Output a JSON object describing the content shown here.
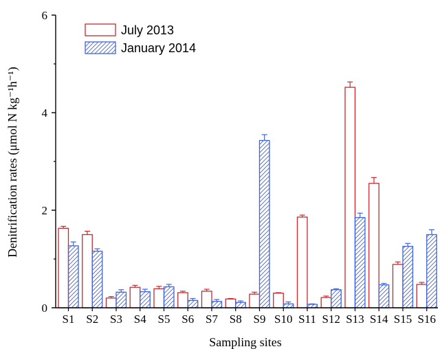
{
  "chart_data": {
    "type": "bar",
    "xlabel": "Sampling sites",
    "ylabel": "Denitrification rates (μmol N kg⁻¹h⁻¹)",
    "ylim": [
      0,
      6
    ],
    "yticks": [
      "0",
      "2",
      "4",
      "6"
    ],
    "categories": [
      "S1",
      "S2",
      "S3",
      "S4",
      "S5",
      "S6",
      "S7",
      "S8",
      "S9",
      "S10",
      "S11",
      "S12",
      "S13",
      "S14",
      "S15",
      "S16"
    ],
    "legend_position": "top-left",
    "series": [
      {
        "name": "July 2013",
        "color": "#c8282d",
        "pattern": "solid-outline",
        "values": [
          1.63,
          1.5,
          0.2,
          0.42,
          0.39,
          0.31,
          0.34,
          0.18,
          0.28,
          0.3,
          1.86,
          0.21,
          4.52,
          2.55,
          0.89,
          0.48
        ],
        "errors": [
          0.04,
          0.07,
          0.03,
          0.04,
          0.05,
          0.03,
          0.04,
          0.01,
          0.04,
          0.01,
          0.04,
          0.03,
          0.11,
          0.12,
          0.05,
          0.04
        ]
      },
      {
        "name": "January 2014",
        "color": "#3c64e6",
        "pattern": "hatched",
        "values": [
          1.27,
          1.16,
          0.32,
          0.33,
          0.43,
          0.15,
          0.13,
          0.11,
          3.43,
          0.08,
          0.07,
          0.37,
          1.85,
          0.47,
          1.26,
          1.5
        ],
        "errors": [
          0.08,
          0.05,
          0.05,
          0.05,
          0.05,
          0.04,
          0.04,
          0.03,
          0.12,
          0.04,
          0.01,
          0.02,
          0.09,
          0.03,
          0.06,
          0.1
        ]
      }
    ]
  }
}
